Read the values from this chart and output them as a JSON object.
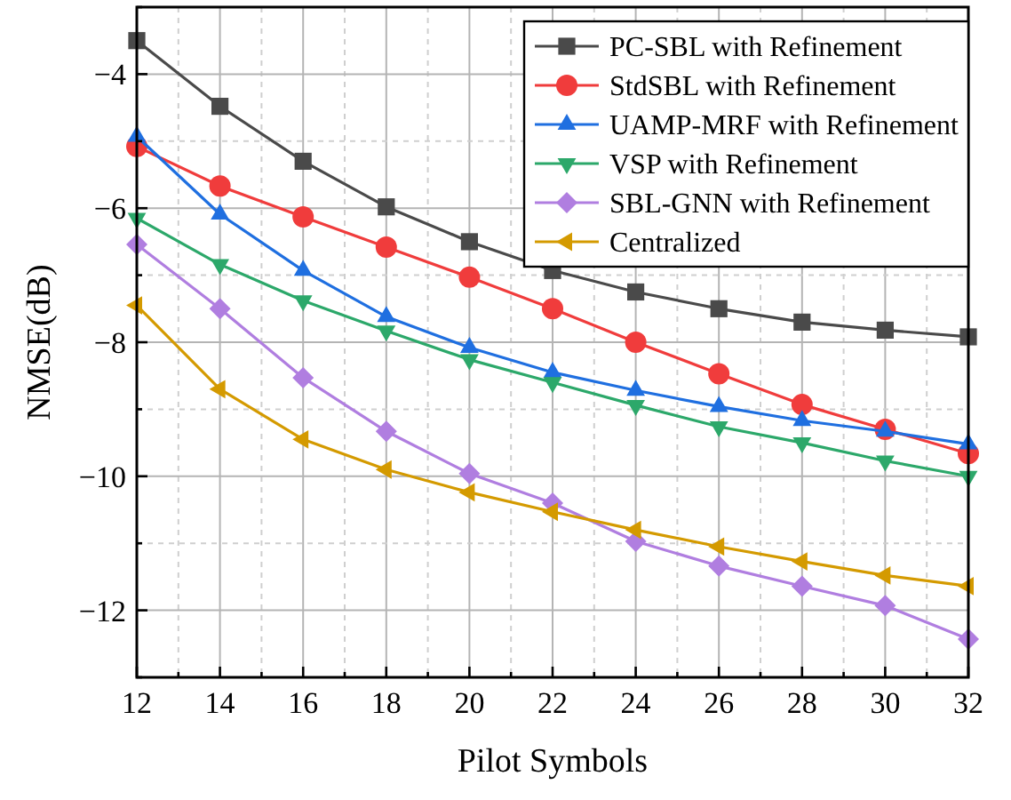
{
  "chart_data": {
    "type": "line",
    "xlabel": "Pilot Symbols",
    "ylabel": "NMSE(dB)",
    "x": [
      12,
      14,
      16,
      18,
      20,
      22,
      24,
      26,
      28,
      30,
      32
    ],
    "xlim": [
      12,
      32
    ],
    "ylim": [
      -13,
      -3
    ],
    "xticks": [
      12,
      {
        "value": 13,
        "label": null
      },
      14,
      {
        "value": 15,
        "label": null
      },
      16,
      {
        "value": 17,
        "label": null
      },
      18,
      {
        "value": 19,
        "label": null
      },
      20,
      {
        "value": 21,
        "label": null
      },
      22,
      {
        "value": 23,
        "label": null
      },
      24,
      {
        "value": 25,
        "label": null
      },
      26,
      {
        "value": 27,
        "label": null
      },
      28,
      {
        "value": 29,
        "label": null
      },
      30,
      {
        "value": 31,
        "label": null
      },
      32
    ],
    "yticks": [
      {
        "value": -13,
        "label": null
      },
      -12,
      {
        "value": -11,
        "label": null
      },
      -10,
      {
        "value": -9,
        "label": null
      },
      -8,
      {
        "value": -7,
        "label": null
      },
      -6,
      {
        "value": -5,
        "label": null
      },
      -4,
      {
        "value": -3,
        "label": null
      }
    ],
    "grid": true,
    "legend": "top right",
    "line_style": "solid",
    "series": [
      {
        "name": "PC-SBL with Refinement",
        "color": "#4a4a4a",
        "marker": "square",
        "values": [
          -3.5,
          -4.48,
          -5.3,
          -5.98,
          -6.5,
          -6.93,
          -7.25,
          -7.5,
          -7.7,
          -7.82,
          -7.92
        ]
      },
      {
        "name": "StdSBL with Refinement",
        "color": "#f03c3c",
        "marker": "circle",
        "values": [
          -5.08,
          -5.67,
          -6.13,
          -6.58,
          -7.03,
          -7.5,
          -8.0,
          -8.47,
          -8.93,
          -9.3,
          -9.66
        ]
      },
      {
        "name": "UAMP-MRF with Refinement",
        "color": "#1f6fe0",
        "marker": "triangle",
        "values": [
          -4.93,
          -6.09,
          -6.93,
          -7.62,
          -8.08,
          -8.45,
          -8.72,
          -8.96,
          -9.17,
          -9.33,
          -9.52
        ]
      },
      {
        "name": "VSP with Refinement",
        "color": "#2ca86a",
        "marker": "triangle-down",
        "values": [
          -6.15,
          -6.84,
          -7.38,
          -7.83,
          -8.26,
          -8.6,
          -8.94,
          -9.26,
          -9.5,
          -9.77,
          -10.0
        ]
      },
      {
        "name": "SBL-GNN with Refinement",
        "color": "#b07ee0",
        "marker": "diamond",
        "values": [
          -6.54,
          -7.5,
          -8.53,
          -9.33,
          -9.96,
          -10.4,
          -10.97,
          -11.34,
          -11.64,
          -11.93,
          -12.43
        ]
      },
      {
        "name": "Centralized",
        "color": "#d49a00",
        "marker": "triangle-left",
        "values": [
          -7.45,
          -8.7,
          -9.45,
          -9.9,
          -10.24,
          -10.53,
          -10.8,
          -11.05,
          -11.27,
          -11.48,
          -11.64
        ]
      }
    ]
  }
}
